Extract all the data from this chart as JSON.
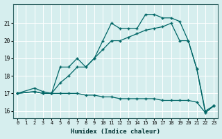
{
  "xlabel": "Humidex (Indice chaleur)",
  "background_color": "#d6eeee",
  "grid_color": "#ffffff",
  "line_color": "#006666",
  "xlim": [
    -0.5,
    23.5
  ],
  "ylim": [
    15.6,
    22.1
  ],
  "yticks": [
    16,
    17,
    18,
    19,
    20,
    21
  ],
  "xticks": [
    0,
    1,
    2,
    3,
    4,
    5,
    6,
    7,
    8,
    9,
    10,
    11,
    12,
    13,
    14,
    15,
    16,
    17,
    18,
    19,
    20,
    21,
    22,
    23
  ],
  "line1_x": [
    0,
    2,
    3,
    4,
    5,
    6,
    7,
    8,
    9,
    10,
    11,
    12,
    13,
    14,
    15,
    16,
    17,
    18,
    19,
    20,
    21,
    22,
    23
  ],
  "line1_y": [
    17.0,
    17.3,
    17.1,
    17.0,
    18.5,
    18.5,
    19.0,
    18.5,
    19.0,
    20.0,
    21.0,
    20.7,
    20.7,
    20.7,
    21.5,
    21.5,
    21.3,
    21.3,
    21.1,
    20.0,
    18.4,
    15.9,
    16.3
  ],
  "line2_x": [
    0,
    2,
    3,
    4,
    5,
    6,
    7,
    8,
    9,
    10,
    11,
    12,
    13,
    14,
    15,
    16,
    17,
    18,
    19,
    20,
    21,
    22,
    23
  ],
  "line2_y": [
    17.0,
    17.1,
    17.0,
    17.0,
    17.6,
    18.0,
    18.5,
    18.5,
    19.0,
    19.5,
    20.0,
    20.0,
    20.2,
    20.4,
    20.6,
    20.7,
    20.8,
    21.0,
    20.0,
    20.0,
    18.4,
    16.0,
    16.3
  ],
  "line3_x": [
    0,
    2,
    3,
    4,
    5,
    6,
    7,
    8,
    9,
    10,
    11,
    12,
    13,
    14,
    15,
    16,
    17,
    18,
    19,
    20,
    21,
    22,
    23
  ],
  "line3_y": [
    17.0,
    17.1,
    17.0,
    17.0,
    17.0,
    17.0,
    17.0,
    16.9,
    16.9,
    16.8,
    16.8,
    16.7,
    16.7,
    16.7,
    16.7,
    16.7,
    16.6,
    16.6,
    16.6,
    16.6,
    16.5,
    15.9,
    16.3
  ]
}
